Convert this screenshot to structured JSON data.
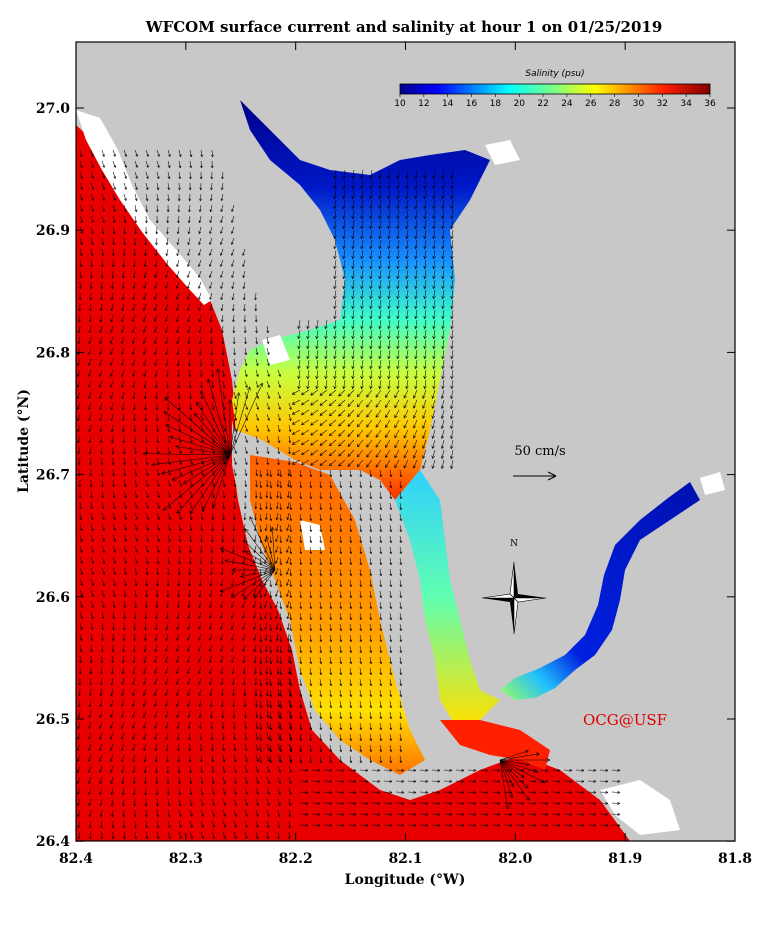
{
  "title": "WFCOM surface current and salinity at hour 1 on 01/25/2019",
  "axes": {
    "xlabel": "Longitude (°W)",
    "ylabel": "Latitude (°N)",
    "x_ticks": [
      "82.4",
      "82.3",
      "82.2",
      "82.1",
      "82.0",
      "81.9",
      "81.8"
    ],
    "y_ticks": [
      "27.0",
      "26.9",
      "26.8",
      "26.7",
      "26.6",
      "26.5",
      "26.4"
    ],
    "xlim": [
      82.4,
      81.8
    ],
    "ylim": [
      26.4,
      27.05
    ]
  },
  "colorbar": {
    "title": "Salinity (psu)",
    "ticks": [
      "10",
      "12",
      "14",
      "16",
      "18",
      "20",
      "22",
      "24",
      "26",
      "28",
      "30",
      "32",
      "34",
      "36"
    ],
    "range": [
      10,
      36
    ]
  },
  "scale_arrow_label": "50 cm/s",
  "north_label": "N",
  "credit": "OCG@USF",
  "colors": {
    "land": "#c8c8c8",
    "gulf": "#e80000",
    "credit": "#e00000"
  }
}
